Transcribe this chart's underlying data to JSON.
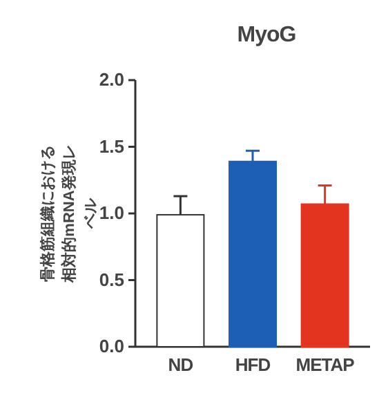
{
  "chart_data": {
    "type": "bar",
    "title": "MyoG",
    "ylabel": "骨格筋組織における相対的mRNA発現レベル",
    "categories": [
      "ND",
      "HFD",
      "METAP"
    ],
    "values": [
      0.99,
      1.39,
      1.07
    ],
    "errors": [
      [
        0.99,
        1.13
      ],
      [
        1.39,
        1.47
      ],
      [
        1.07,
        1.21
      ]
    ],
    "colors": [
      "#ffffff",
      "#1d5fb5",
      "#e2341f"
    ],
    "ylim": [
      0,
      2
    ],
    "yticks": [
      {
        "value": 0,
        "label": "0.0"
      },
      {
        "value": 0.5,
        "label": "0.5"
      },
      {
        "value": 1,
        "label": "1.0"
      },
      {
        "value": 1.5,
        "label": "1.5"
      },
      {
        "value": 2,
        "label": "2.0"
      }
    ],
    "grid": false
  }
}
